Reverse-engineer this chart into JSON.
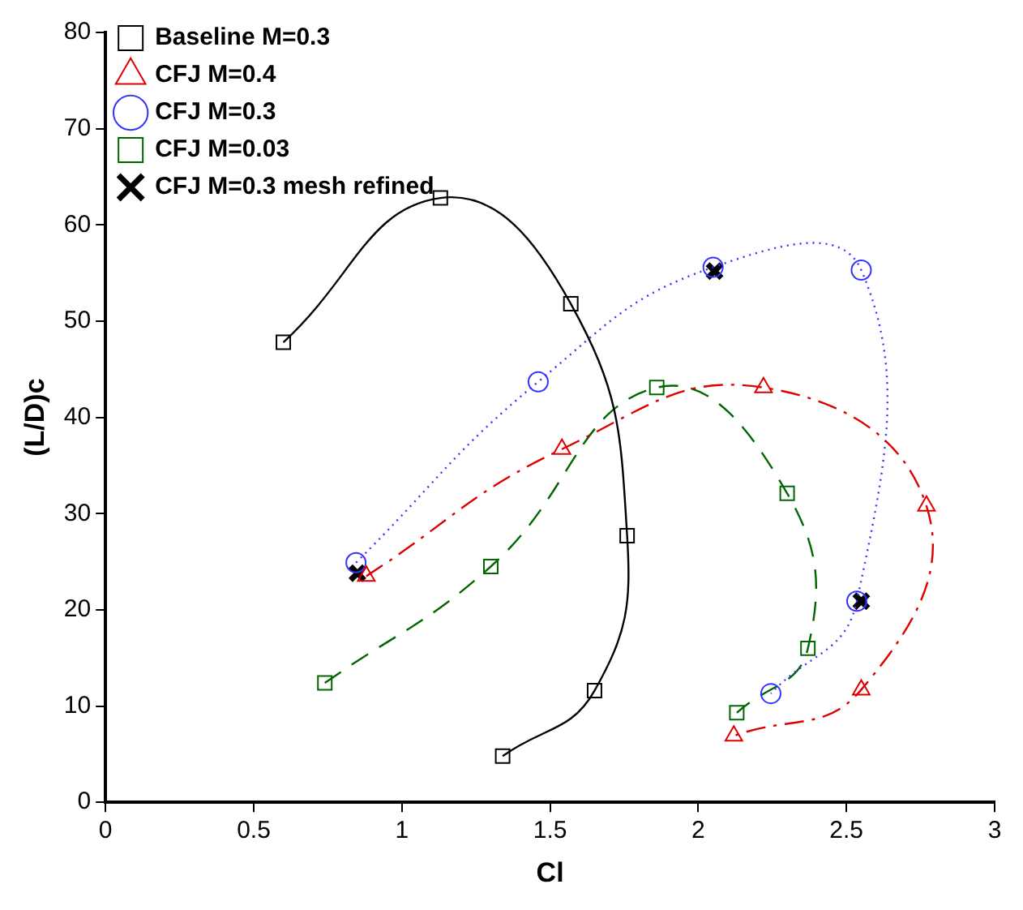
{
  "chart_data": {
    "type": "line",
    "xlabel": "Cl",
    "ylabel": "(L/D)c",
    "xlim": [
      0,
      3
    ],
    "xticks": [
      0,
      0.5,
      1,
      1.5,
      2,
      2.5,
      3
    ],
    "ylim": [
      0,
      80
    ],
    "yticks": [
      0,
      10,
      20,
      30,
      40,
      50,
      60,
      70,
      80
    ],
    "grid": false,
    "legend": "top left",
    "series": [
      {
        "name": "Baseline M=0.3",
        "color": "#000000",
        "marker": "square",
        "line_style": "solid",
        "x": [
          0.6,
          1.13,
          1.57,
          1.76,
          1.65,
          1.34
        ],
        "values": [
          47.8,
          62.8,
          51.8,
          27.7,
          11.6,
          4.8
        ]
      },
      {
        "name": "CFJ M=0.4",
        "color": "#dd0000",
        "marker": "triangle",
        "line_style": "dashdot",
        "x": [
          0.88,
          1.54,
          2.22,
          2.77,
          2.55,
          2.12
        ],
        "values": [
          23.5,
          36.7,
          43.1,
          30.8,
          11.7,
          6.9
        ]
      },
      {
        "name": "CFJ M=0.3",
        "color": "#3333ff",
        "marker": "circle",
        "line_style": "dotted",
        "x": [
          0.845,
          1.46,
          2.05,
          2.55,
          2.535,
          2.245
        ],
        "values": [
          24.9,
          43.7,
          55.6,
          55.3,
          20.9,
          11.3
        ]
      },
      {
        "name": "CFJ M=0.03",
        "color": "#006600",
        "marker": "square",
        "line_style": "dashed",
        "x": [
          0.74,
          1.3,
          1.86,
          2.3,
          2.37,
          2.13
        ],
        "values": [
          12.4,
          24.5,
          43.1,
          32.1,
          16.0,
          9.3
        ]
      },
      {
        "name": "CFJ M=0.3 mesh refined",
        "type": "scatter",
        "color": "#000000",
        "marker": "cross",
        "x": [
          0.85,
          2.055,
          2.55
        ],
        "values": [
          23.8,
          55.2,
          20.9
        ]
      }
    ]
  }
}
